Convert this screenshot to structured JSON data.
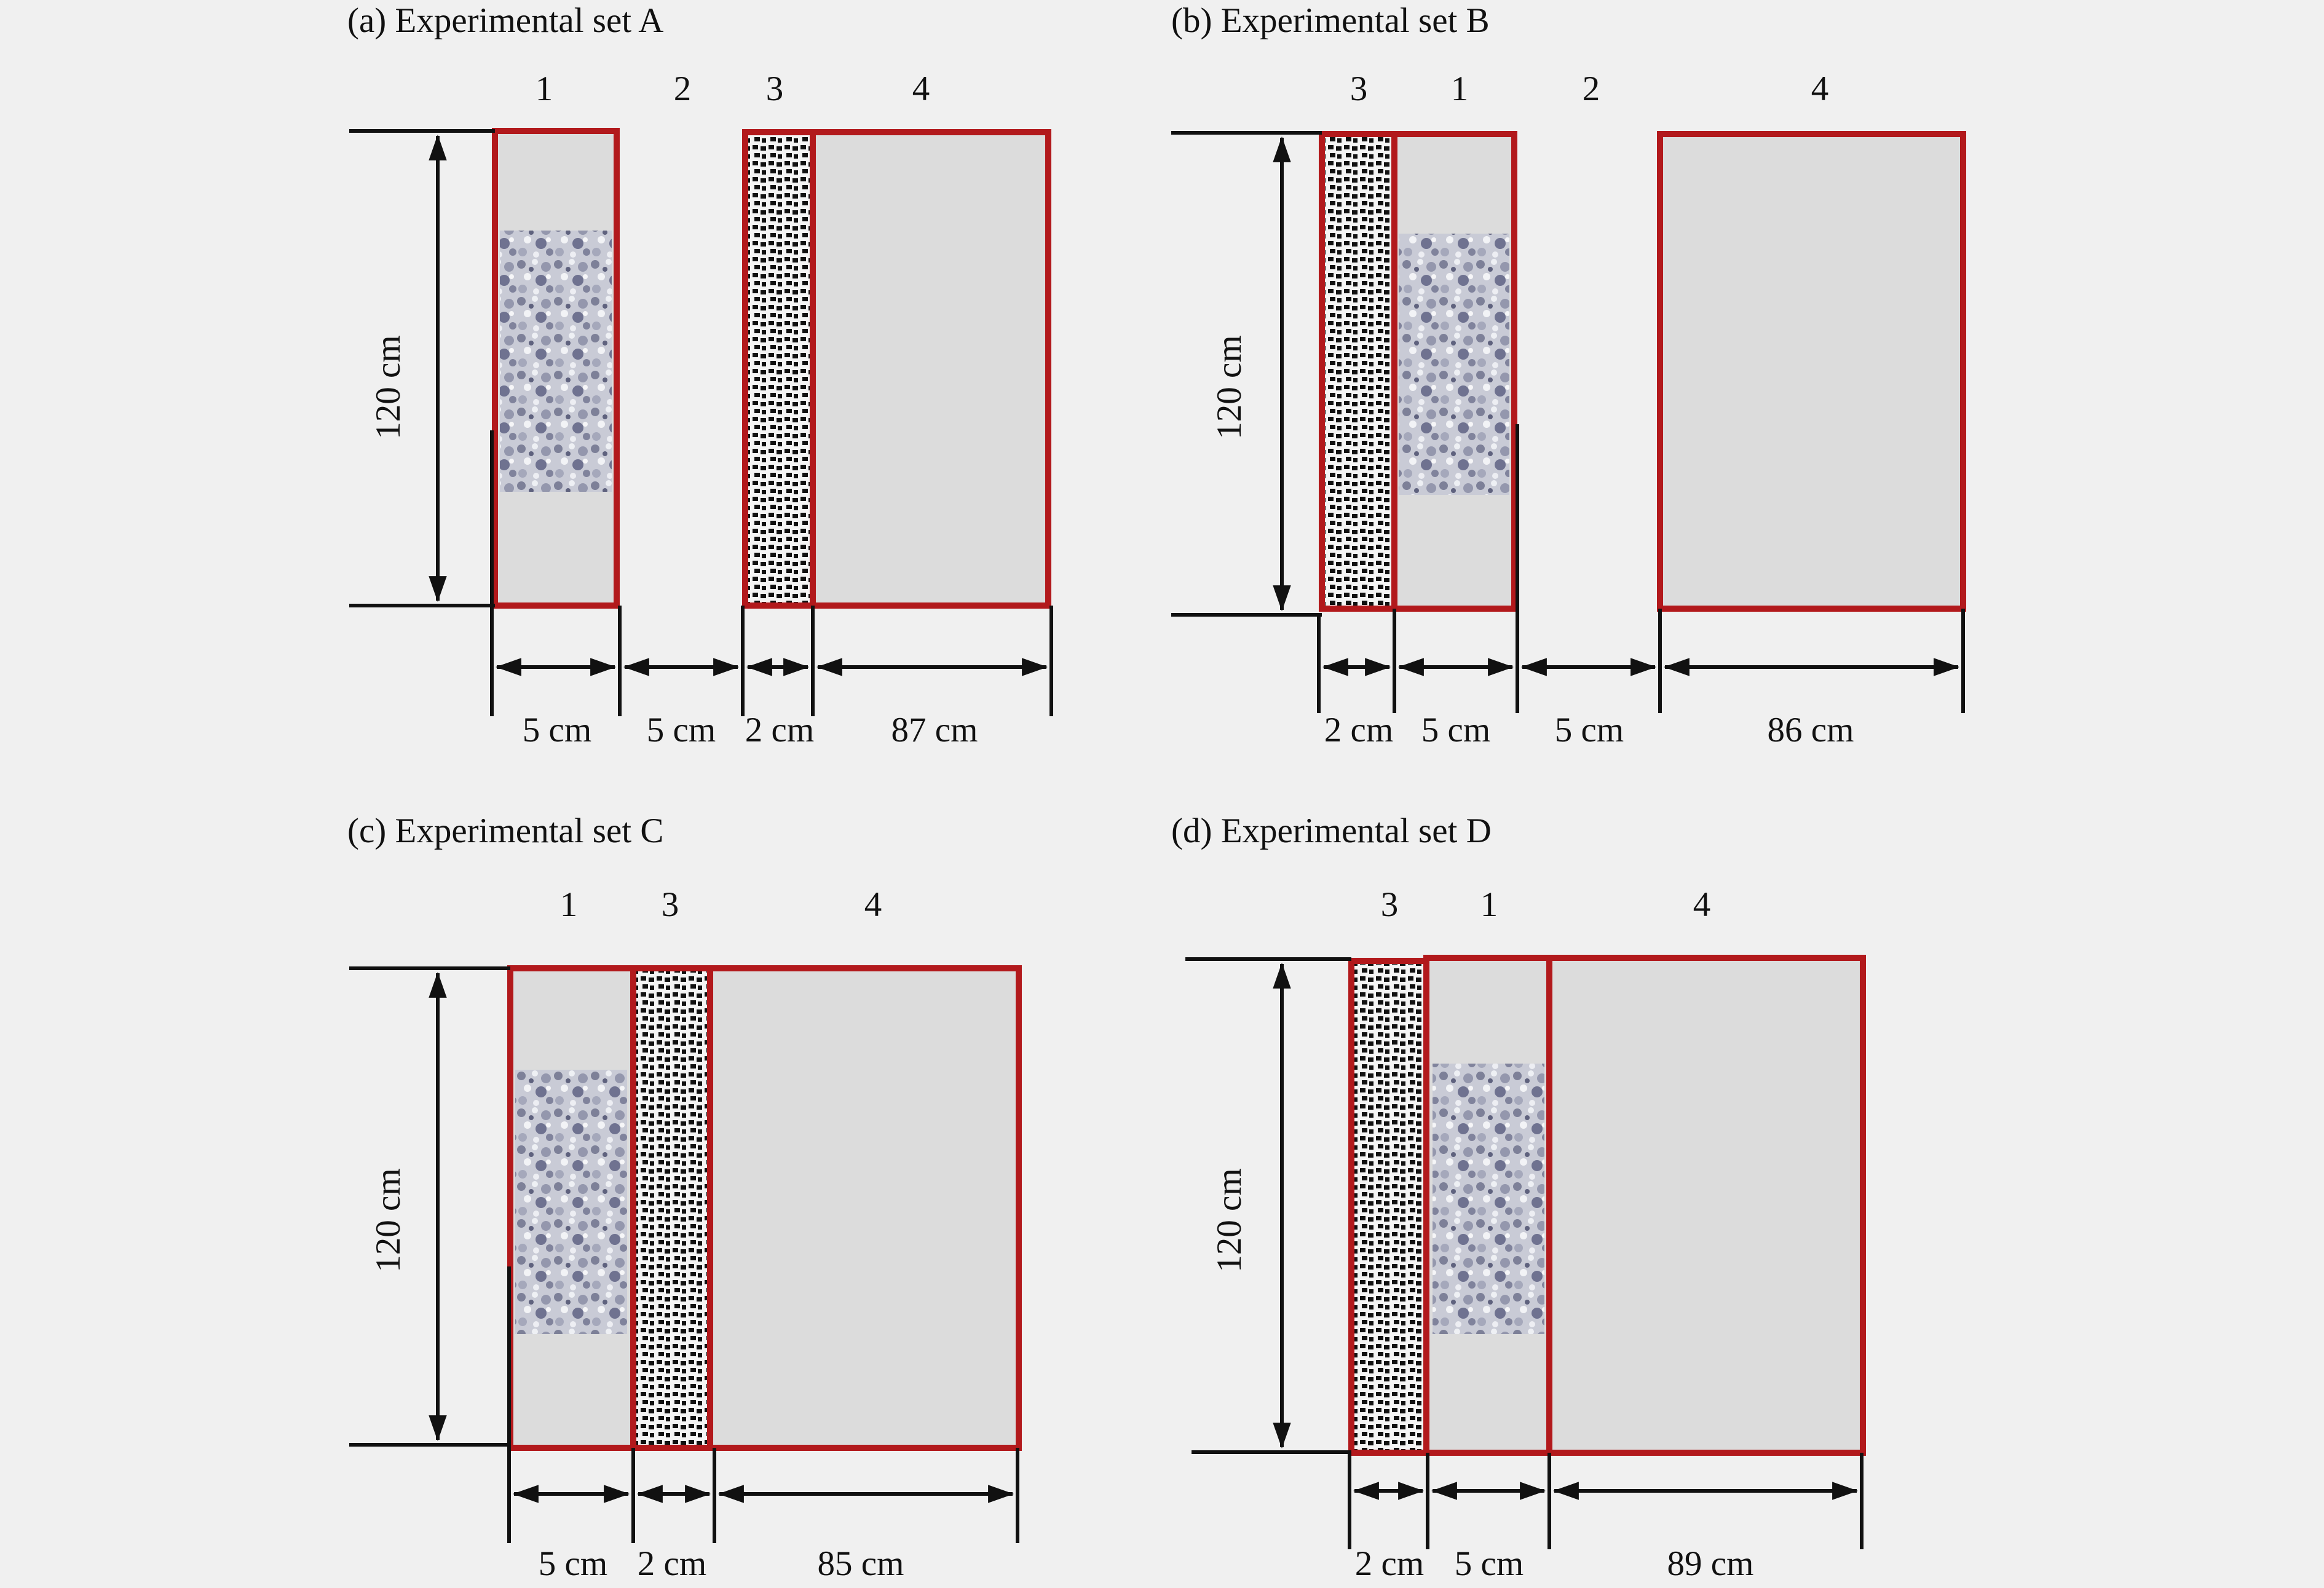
{
  "panels": [
    {
      "title": "(a) Experimental set A",
      "height_label": "120 cm",
      "zones": [
        {
          "number": "1",
          "width_label": "5 cm",
          "fill": "soil"
        },
        {
          "number": "2",
          "width_label": "5 cm",
          "fill": "gap"
        },
        {
          "number": "3",
          "width_label": "2 cm",
          "fill": "gravel"
        },
        {
          "number": "4",
          "width_label": "87 cm",
          "fill": "plain"
        }
      ]
    },
    {
      "title": "(b) Experimental set B",
      "height_label": "120 cm",
      "zones": [
        {
          "number": "3",
          "width_label": "2 cm",
          "fill": "gravel"
        },
        {
          "number": "1",
          "width_label": "5 cm",
          "fill": "soil"
        },
        {
          "number": "2",
          "width_label": "5 cm",
          "fill": "gap"
        },
        {
          "number": "4",
          "width_label": "86 cm",
          "fill": "plain"
        }
      ]
    },
    {
      "title": "(c) Experimental set C",
      "height_label": "120 cm",
      "zones": [
        {
          "number": "1",
          "width_label": "5 cm",
          "fill": "soil"
        },
        {
          "number": "3",
          "width_label": "2 cm",
          "fill": "gravel"
        },
        {
          "number": "4",
          "width_label": "85 cm",
          "fill": "plain"
        }
      ]
    },
    {
      "title": "(d) Experimental set D",
      "height_label": "120 cm",
      "zones": [
        {
          "number": "3",
          "width_label": "2 cm",
          "fill": "gravel"
        },
        {
          "number": "1",
          "width_label": "5 cm",
          "fill": "soil"
        },
        {
          "number": "4",
          "width_label": "89 cm",
          "fill": "plain"
        }
      ]
    }
  ],
  "colors": {
    "background": "#f0f0f0",
    "zone_fill": "#dcdcdc",
    "zone_border": "#b2191c",
    "gravel_dark": "#111111",
    "soil_mid": "#8e90a6"
  }
}
